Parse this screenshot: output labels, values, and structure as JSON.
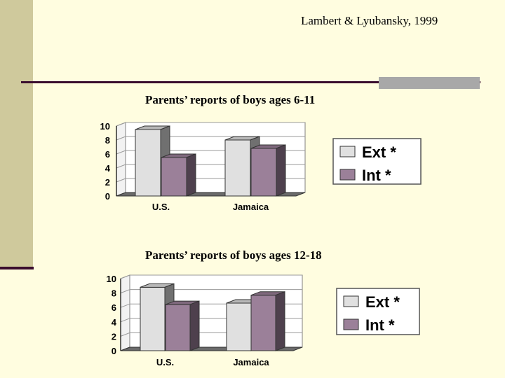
{
  "citation": "Lambert & Lyubansky, 1999",
  "colors": {
    "ext": "#e0e0e0",
    "int": "#9b8099",
    "background": "#fffde0",
    "accent_dark": "#3a0d2e",
    "side_bar": "#cfc99c"
  },
  "chart_data": [
    {
      "type": "bar",
      "title": "Parents’ reports of boys ages 6-11",
      "categories": [
        "U.S.",
        "Jamaica"
      ],
      "series": [
        {
          "name": "Ext *",
          "values": [
            9.5,
            8.0
          ]
        },
        {
          "name": "Int *",
          "values": [
            5.5,
            6.8
          ]
        }
      ],
      "ylim": [
        0,
        10
      ],
      "yticks": [
        "0",
        "2",
        "4",
        "6",
        "8",
        "10"
      ],
      "grid": true,
      "legend": "right"
    },
    {
      "type": "bar",
      "title": "Parents’ reports of boys ages 12-18",
      "categories": [
        "U.S.",
        "Jamaica"
      ],
      "series": [
        {
          "name": "Ext *",
          "values": [
            8.8,
            6.6
          ]
        },
        {
          "name": "Int *",
          "values": [
            6.4,
            7.7
          ]
        }
      ],
      "ylim": [
        0,
        10
      ],
      "yticks": [
        "0",
        "2",
        "4",
        "6",
        "8",
        "10"
      ],
      "grid": true,
      "legend": "right"
    }
  ]
}
